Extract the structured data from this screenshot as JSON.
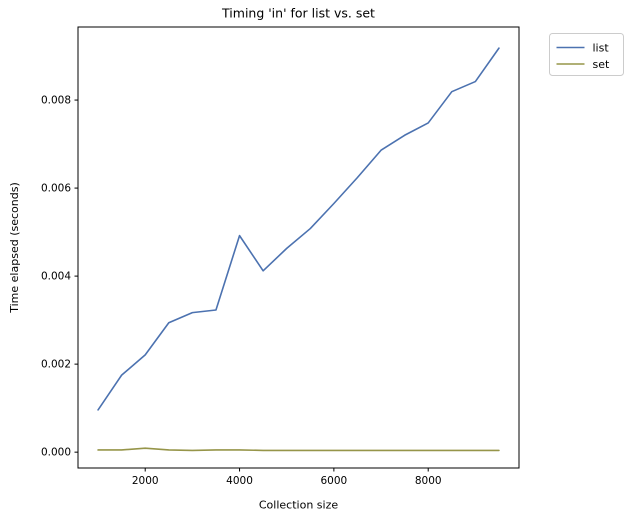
{
  "figure": {
    "background_color": "#ffffff",
    "axes_color": "#000000",
    "text_color": "#000000"
  },
  "chart_data": {
    "type": "line",
    "title": "Timing 'in' for list vs. set",
    "xlabel": "Collection size",
    "ylabel": "Time elapsed (seconds)",
    "grid": false,
    "x": [
      1000,
      1500,
      2000,
      2500,
      3000,
      3500,
      4000,
      4500,
      5000,
      5500,
      6000,
      6500,
      7000,
      7500,
      8000,
      8500,
      9000,
      9500
    ],
    "series": [
      {
        "name": "list",
        "color": "#4c72b0",
        "values": [
          0.00096,
          0.00175,
          0.00221,
          0.00294,
          0.00317,
          0.00323,
          0.00492,
          0.00412,
          0.00463,
          0.00508,
          0.00565,
          0.00624,
          0.00686,
          0.0072,
          0.00748,
          0.00819,
          0.00842,
          0.00918
        ]
      },
      {
        "name": "set",
        "color": "#969549",
        "values": [
          5e-05,
          5e-05,
          9e-05,
          5e-05,
          4e-05,
          5e-05,
          5e-05,
          4e-05,
          4e-05,
          4e-05,
          4e-05,
          4e-05,
          4e-05,
          4e-05,
          4e-05,
          4e-05,
          4e-05,
          4e-05
        ]
      }
    ],
    "xlim": [
      575,
      9925
    ],
    "ylim": [
      -0.00036,
      0.00966
    ],
    "xticks": [
      2000,
      4000,
      6000,
      8000
    ],
    "xtick_labels": [
      "2000",
      "4000",
      "6000",
      "8000"
    ],
    "yticks": [
      0.0,
      0.002,
      0.004,
      0.006,
      0.008
    ],
    "ytick_labels": [
      "0.000",
      "0.002",
      "0.004",
      "0.006",
      "0.008"
    ],
    "legend_position": "outside upper right",
    "legend": {
      "entries": [
        "list",
        "set"
      ],
      "border_color": "#cccccc",
      "background_color": "#ffffff"
    }
  }
}
